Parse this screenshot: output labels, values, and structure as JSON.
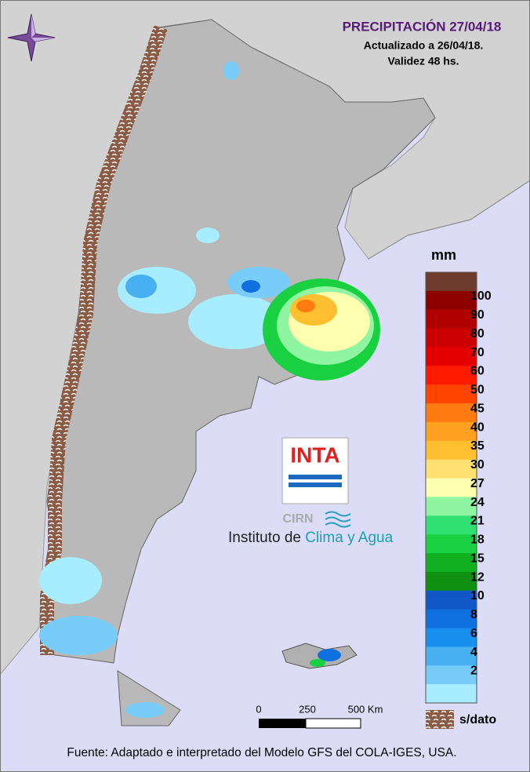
{
  "header": {
    "title": "PRECIPITACIÓN 27/04/18",
    "updated": "Actualizado a 26/04/18.",
    "validity": "Validez 48 hs."
  },
  "legend": {
    "unit": "mm",
    "colors": [
      "#6e3b2c",
      "#8e0000",
      "#b00000",
      "#cc0000",
      "#e40000",
      "#ff1a00",
      "#ff4400",
      "#ff7a10",
      "#ffa020",
      "#ffbf30",
      "#ffe070",
      "#ffffb0",
      "#90f5a0",
      "#30e070",
      "#18d040",
      "#10b020",
      "#109010",
      "#1058c8",
      "#1070e0",
      "#1890f0",
      "#48b0f0",
      "#78ccf8",
      "#a8ecff"
    ],
    "labels": [
      "100",
      "90",
      "80",
      "70",
      "60",
      "50",
      "45",
      "40",
      "35",
      "30",
      "27",
      "24",
      "21",
      "18",
      "15",
      "12",
      "10",
      "8",
      "6",
      "4",
      "2"
    ],
    "no_data": "s/dato"
  },
  "scale": {
    "labels": [
      "0",
      "250",
      "500 Km"
    ]
  },
  "logo": {
    "name": "INTA",
    "center": "CIRN",
    "institute": "Instituto de",
    "institute_highlight": "Clima y Agua"
  },
  "footer": {
    "source": "Fuente: Adaptado e interpretado del Modelo GFS del COLA-IGES, USA."
  }
}
